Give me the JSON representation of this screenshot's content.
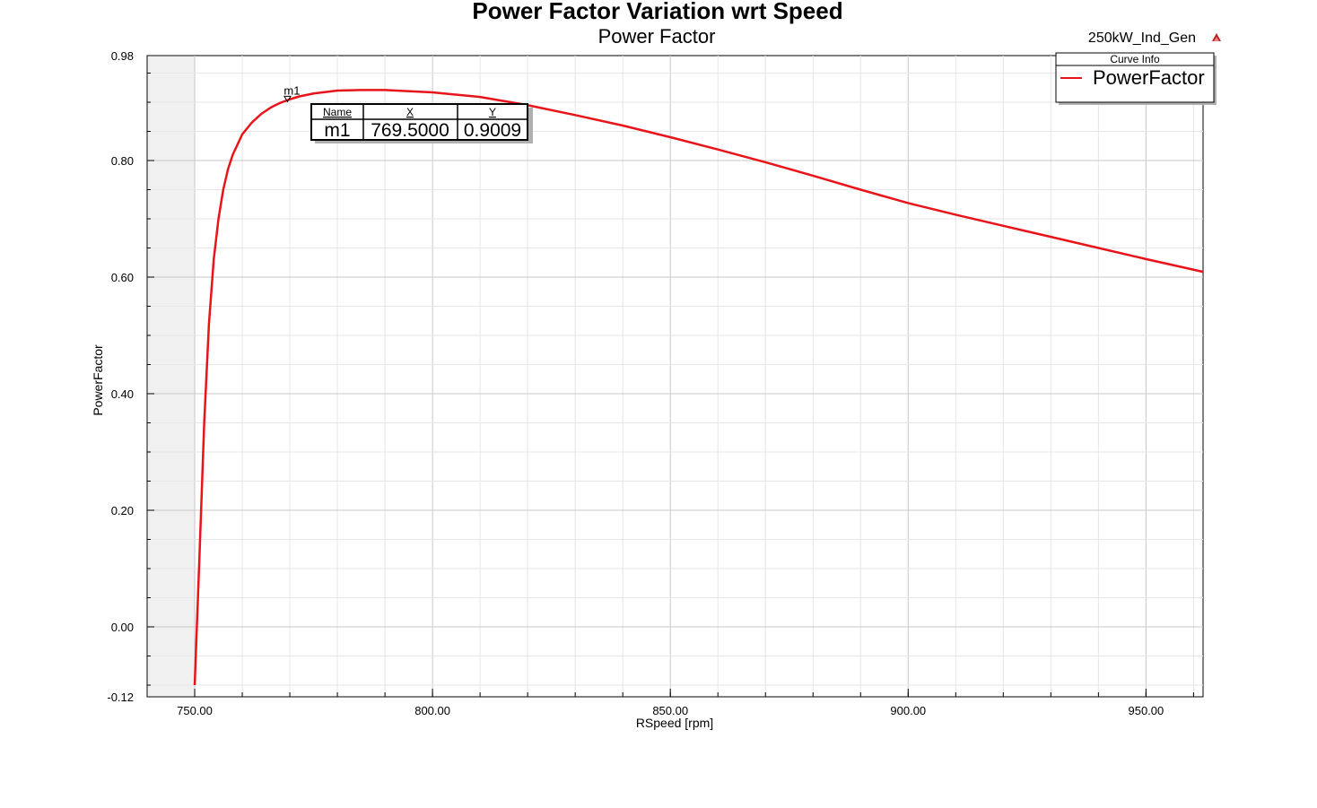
{
  "chart_data": {
    "type": "line",
    "title": "Power Factor Variation wrt Speed",
    "subtitle": "Power Factor",
    "project_name": "250kW_Ind_Gen",
    "xlabel": "RSpeed [rpm]",
    "ylabel": "PowerFactor",
    "xlim": [
      740,
      962
    ],
    "ylim": [
      -0.12,
      0.98
    ],
    "x_ticks": [
      750,
      800,
      850,
      900,
      950
    ],
    "x_tick_labels": [
      "750.00",
      "800.00",
      "850.00",
      "900.00",
      "950.00"
    ],
    "y_ticks": [
      -0.12,
      0.0,
      0.2,
      0.4,
      0.6,
      0.8,
      0.98
    ],
    "y_tick_labels": [
      "-0.12",
      "0.00",
      "0.20",
      "0.40",
      "0.60",
      "0.80",
      "0.98"
    ],
    "grid": true,
    "shaded_region_x": [
      740,
      750
    ],
    "legend": {
      "title": "Curve Info",
      "placement": "top-right"
    },
    "series": [
      {
        "name": "PowerFactor",
        "color": "#e8141a",
        "x": [
          750.0,
          751.0,
          752.0,
          753.0,
          754.0,
          755.0,
          756.0,
          757.0,
          758.0,
          760.0,
          762.0,
          764.0,
          766.0,
          768.0,
          770.0,
          772.0,
          775.0,
          780.0,
          785.0,
          790.0,
          800.0,
          810.0,
          820.0,
          830.0,
          840.0,
          850.0,
          860.0,
          870.0,
          880.0,
          890.0,
          900.0,
          910.0,
          920.0,
          930.0,
          940.0,
          950.0,
          962.0
        ],
        "y": [
          -0.1,
          0.12,
          0.35,
          0.52,
          0.63,
          0.7,
          0.75,
          0.785,
          0.81,
          0.845,
          0.865,
          0.88,
          0.891,
          0.899,
          0.905,
          0.91,
          0.915,
          0.92,
          0.921,
          0.921,
          0.917,
          0.909,
          0.895,
          0.878,
          0.86,
          0.84,
          0.819,
          0.797,
          0.774,
          0.75,
          0.727,
          0.707,
          0.688,
          0.669,
          0.65,
          0.631,
          0.609
        ]
      }
    ],
    "markers": [
      {
        "name": "m1",
        "x": 769.5,
        "y": 0.9009,
        "x_text": "769.5000",
        "y_text": "0.9009"
      }
    ],
    "marker_table": {
      "headers": [
        "Name",
        "X",
        "Y"
      ]
    }
  }
}
